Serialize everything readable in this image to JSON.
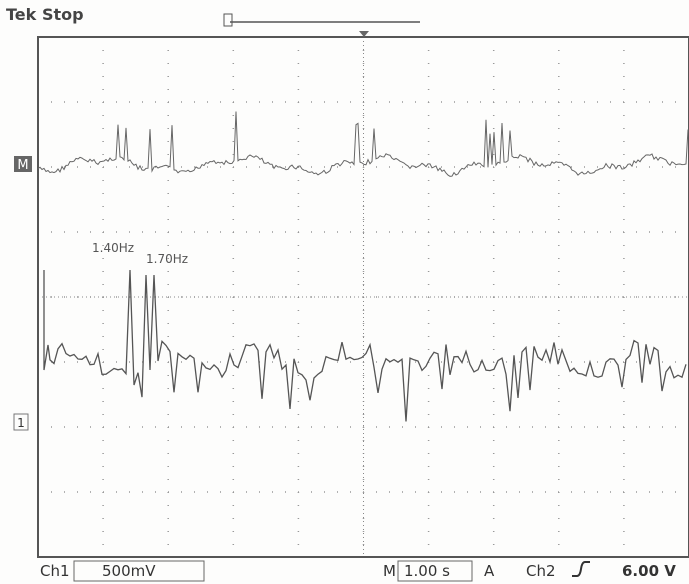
{
  "header": {
    "brand": "Tek",
    "status": "Stop"
  },
  "markers": {
    "math": "M",
    "ch1": "1"
  },
  "annotations": [
    "1.40Hz",
    "1.70Hz"
  ],
  "footer": {
    "ch1_label": "Ch1",
    "ch1_scale": "500mV",
    "time_prefix": "M",
    "time_scale": "1.00 s",
    "trigger_mode": "A",
    "trigger_source": "Ch2",
    "trigger_level": "6.00 V"
  }
}
